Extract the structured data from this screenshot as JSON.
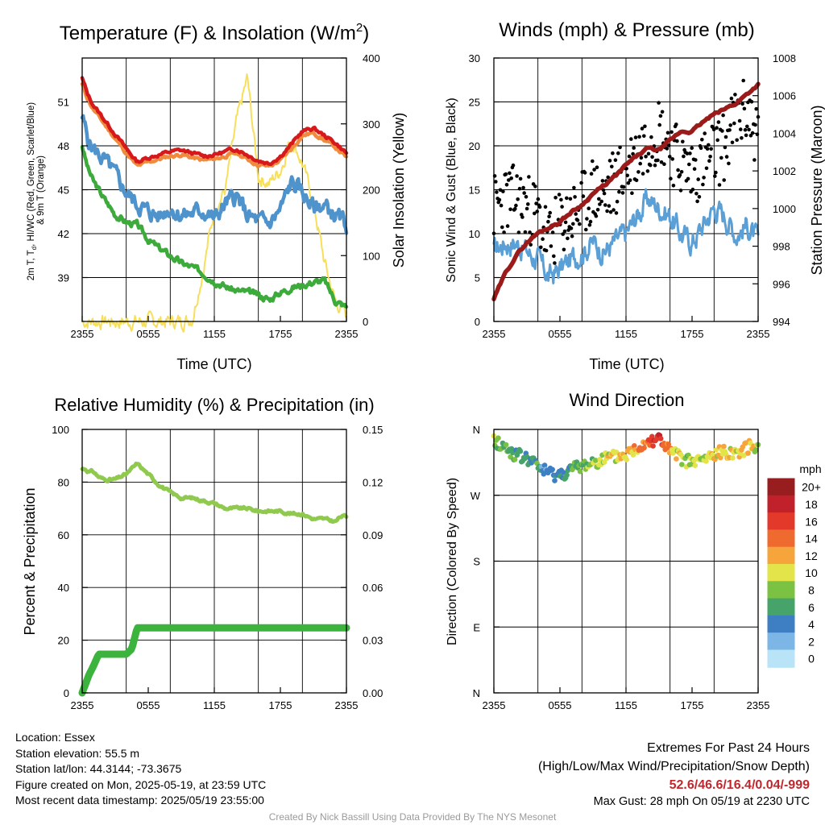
{
  "panels": {
    "temp": {
      "title": "Temperature (F) & Insolation (W/m²)",
      "ylabel_left": "2m T, Tᵈ, HI/WC (Red, Green, Scarlet/Blue) & 9m T (Orange)",
      "ylabel_right": "Solar Insolation (Yellow)",
      "xlabel": "Time (UTC)",
      "left_ticks": [
        "39",
        "42",
        "45",
        "48",
        "51"
      ],
      "right_ticks": [
        "0",
        "100",
        "200",
        "300",
        "400"
      ]
    },
    "wind": {
      "title": "Winds (mph) & Pressure (mb)",
      "ylabel_left": "Sonic Wind & Gust (Blue, Black)",
      "ylabel_right": "Station Pressure (Maroon)",
      "xlabel": "Time (UTC)",
      "left_ticks": [
        "0",
        "5",
        "10",
        "15",
        "20",
        "25",
        "30"
      ],
      "right_ticks": [
        "994",
        "996",
        "998",
        "1000",
        "1002",
        "1004",
        "1006",
        "1008"
      ]
    },
    "rh": {
      "title": "Relative Humidity (%) & Precipitation (in)",
      "ylabel_left": "Percent & Precipitation",
      "left_ticks": [
        "0",
        "20",
        "40",
        "60",
        "80",
        "100"
      ],
      "right_ticks": [
        "0.00",
        "0.03",
        "0.06",
        "0.09",
        "0.12",
        "0.15"
      ]
    },
    "dir": {
      "title": "Wind Direction",
      "ylabel_left": "Direction (Colored By Speed)",
      "left_ticks": [
        "N",
        "E",
        "S",
        "W",
        "N"
      ],
      "colorbar_title": "mph",
      "colorbar_labels": [
        "0",
        "2",
        "4",
        "6",
        "8",
        "10",
        "12",
        "14",
        "16",
        "18",
        "20+"
      ]
    }
  },
  "x_ticks": [
    "2355",
    "0555",
    "1155",
    "1755",
    "2355"
  ],
  "info": {
    "location": "Location: Essex",
    "elevation": "Station elevation: 55.5 m",
    "latlon": "Station lat/lon: 44.3144; -73.3675",
    "created": "Figure created on Mon, 2025-05-19, at 23:59 UTC",
    "recent": "Most recent data timestamp: 2025/05/19 23:55:00",
    "extremes_title": "Extremes For Past 24 Hours",
    "extremes_sub": "(High/Low/Max Wind/Precipitation/Snow Depth)",
    "extremes_values": "52.6/46.6/16.4/0.04/-999",
    "max_gust": "Max Gust: 28 mph On 05/19 at 2230 UTC",
    "credit": "Created By Nick Bassill Using Data Provided By The NYS Mesonet"
  },
  "colors": {
    "temp": "#d7191c",
    "nine_m": "#f08a3c",
    "dewpoint": "#3daa3c",
    "windchill": "#4f93cc",
    "solar": "#f7df5a",
    "wind": "#5a9fd6",
    "gust": "#000000",
    "pressure": "#9b1b1b",
    "rh": "#8fca4f",
    "precip": "#3cb33c",
    "scale": [
      "#b9e3f7",
      "#7cb6e6",
      "#3d7fc2",
      "#46a36a",
      "#7cc242",
      "#e3e34a",
      "#f6a53c",
      "#ef6a2e",
      "#e3392b",
      "#c0212a",
      "#981d1f"
    ]
  },
  "chart_data": [
    {
      "type": "line",
      "title": "Temperature (F) & Insolation (W/m²)",
      "xlabel": "Time (UTC)",
      "ylabel": "2m T, Tᵈ, HI/WC (Red, Green, Scarlet/Blue) & 9m T (Orange)",
      "y2label": "Solar Insolation (Yellow)",
      "ylim": [
        36,
        54
      ],
      "y2lim": [
        0,
        400
      ],
      "xlim": [
        0,
        24
      ],
      "x": [
        0,
        0.5,
        1,
        2,
        3,
        4,
        5,
        6,
        7,
        8,
        9,
        10,
        11,
        12,
        13,
        14,
        15,
        16,
        17,
        18,
        19,
        20,
        21,
        22,
        23,
        24
      ],
      "series": [
        {
          "name": "2m T",
          "axis": "left",
          "values": [
            52.6,
            51.5,
            50.8,
            49.8,
            48.8,
            47.8,
            46.9,
            47.2,
            47.4,
            47.6,
            47.7,
            47.5,
            47.3,
            47.4,
            47.6,
            47.8,
            47.4,
            47.0,
            46.8,
            47.3,
            48.1,
            49.0,
            49.2,
            48.7,
            48.2,
            47.5
          ]
        },
        {
          "name": "9m T",
          "axis": "left",
          "values": [
            52.2,
            51.2,
            50.5,
            49.5,
            48.5,
            47.5,
            46.6,
            46.9,
            47.1,
            47.3,
            47.4,
            47.2,
            47.0,
            47.1,
            47.3,
            47.5,
            47.1,
            46.7,
            46.6,
            47.0,
            47.8,
            48.7,
            48.9,
            48.4,
            47.9,
            47.2
          ]
        },
        {
          "name": "HI/WC",
          "axis": "left",
          "values": [
            50.0,
            48.5,
            47.8,
            47.0,
            46.0,
            44.8,
            44.0,
            43.5,
            43.2,
            43.8,
            43.2,
            43.4,
            43.6,
            43.0,
            44.0,
            44.6,
            43.2,
            42.8,
            42.7,
            43.6,
            45.5,
            44.8,
            43.8,
            43.9,
            43.2,
            42.6
          ]
        },
        {
          "name": "Td",
          "axis": "left",
          "values": [
            48.0,
            46.5,
            45.6,
            44.4,
            43.3,
            42.8,
            42.6,
            41.6,
            41.0,
            40.5,
            40.0,
            39.7,
            39.3,
            38.8,
            38.4,
            38.1,
            38.0,
            37.8,
            37.5,
            38.0,
            38.3,
            38.5,
            38.7,
            38.8,
            37.4,
            37.0
          ]
        },
        {
          "name": "Solar",
          "axis": "right",
          "values": [
            0,
            0,
            0,
            0,
            0,
            0,
            0,
            0,
            0,
            0,
            0,
            5,
            80,
            170,
            200,
            300,
            370,
            220,
            210,
            230,
            280,
            240,
            180,
            90,
            30,
            10
          ]
        }
      ]
    },
    {
      "type": "line",
      "title": "Winds (mph) & Pressure (mb)",
      "xlabel": "Time (UTC)",
      "ylabel": "Sonic Wind & Gust (Blue, Black)",
      "y2label": "Station Pressure (Maroon)",
      "ylim": [
        0,
        30
      ],
      "y2lim": [
        994,
        1008
      ],
      "xlim": [
        0,
        24
      ],
      "x": [
        0,
        1,
        2,
        3,
        4,
        5,
        6,
        7,
        8,
        9,
        10,
        11,
        12,
        13,
        14,
        15,
        16,
        17,
        18,
        19,
        20,
        21,
        22,
        23,
        24
      ],
      "series": [
        {
          "name": "Sonic Wind",
          "axis": "left",
          "values": [
            8,
            9,
            9,
            8,
            7,
            5,
            6,
            7,
            8,
            9,
            8,
            9,
            10,
            12,
            14,
            13,
            12,
            10,
            9,
            11,
            13,
            12,
            10,
            11,
            9
          ]
        },
        {
          "name": "Gust",
          "axis": "left",
          "values": [
            13,
            14,
            14,
            13,
            12,
            9,
            11,
            12,
            13,
            15,
            14,
            16,
            17,
            19,
            21,
            22,
            20,
            18,
            17,
            18,
            19,
            20,
            23,
            24,
            21
          ]
        },
        {
          "name": "Station Pressure",
          "axis": "right",
          "values": [
            995.2,
            996.5,
            997.5,
            998.2,
            998.7,
            999.0,
            999.3,
            999.8,
            1000.2,
            1000.8,
            1001.2,
            1001.7,
            1002.3,
            1002.8,
            1003.2,
            1003.1,
            1003.6,
            1004.1,
            1004.1,
            1004.6,
            1005.0,
            1005.3,
            1005.6,
            1006.1,
            1006.6
          ]
        }
      ]
    },
    {
      "type": "line",
      "title": "Relative Humidity (%) & Precipitation (in)",
      "ylabel": "Percent & Precipitation",
      "ylim": [
        0,
        100
      ],
      "y2lim": [
        0,
        0.15
      ],
      "xlim": [
        0,
        24
      ],
      "x": [
        0,
        0.3,
        0.6,
        1,
        1.5,
        2,
        3,
        4,
        4.5,
        5,
        6,
        7,
        8,
        9,
        10,
        11,
        12,
        13,
        14,
        15,
        16,
        17,
        18,
        19,
        20,
        21,
        22,
        23,
        23.5,
        24
      ],
      "series": [
        {
          "name": "Relative Humidity",
          "axis": "left",
          "values": [
            85,
            85,
            84,
            84,
            82,
            81,
            81,
            83,
            85,
            87,
            83,
            79,
            76,
            74,
            74,
            73,
            72,
            70,
            70,
            70,
            69,
            69,
            69,
            68,
            68,
            66,
            66,
            65,
            67,
            67
          ]
        },
        {
          "name": "Precipitation",
          "axis": "right",
          "values": [
            0.0,
            0.005,
            0.01,
            0.015,
            0.022,
            0.022,
            0.022,
            0.022,
            0.025,
            0.037,
            0.037,
            0.037,
            0.037,
            0.037,
            0.037,
            0.037,
            0.037,
            0.037,
            0.037,
            0.037,
            0.037,
            0.037,
            0.037,
            0.037,
            0.037,
            0.037,
            0.037,
            0.037,
            0.037,
            0.037
          ]
        }
      ]
    },
    {
      "type": "scatter",
      "title": "Wind Direction",
      "ylabel": "Direction (Colored By Speed)",
      "ylim": [
        0,
        360
      ],
      "xlim": [
        0,
        24
      ],
      "colorbar": {
        "label": "mph",
        "range": [
          0,
          20
        ]
      },
      "x": [
        0,
        1,
        2,
        3,
        4,
        5,
        6,
        7,
        8,
        9,
        10,
        11,
        12,
        13,
        14,
        15,
        16,
        17,
        18,
        19,
        20,
        21,
        22,
        23,
        24
      ],
      "direction_deg": [
        345,
        335,
        325,
        320,
        310,
        300,
        298,
        305,
        310,
        315,
        320,
        322,
        325,
        335,
        345,
        348,
        330,
        320,
        315,
        318,
        325,
        330,
        328,
        335,
        340
      ],
      "speed_mph": [
        8,
        7,
        6,
        6,
        5,
        4,
        4,
        6,
        7,
        8,
        9,
        10,
        11,
        12,
        15,
        17,
        12,
        9,
        8,
        9,
        10,
        11,
        10,
        11,
        10
      ]
    }
  ]
}
